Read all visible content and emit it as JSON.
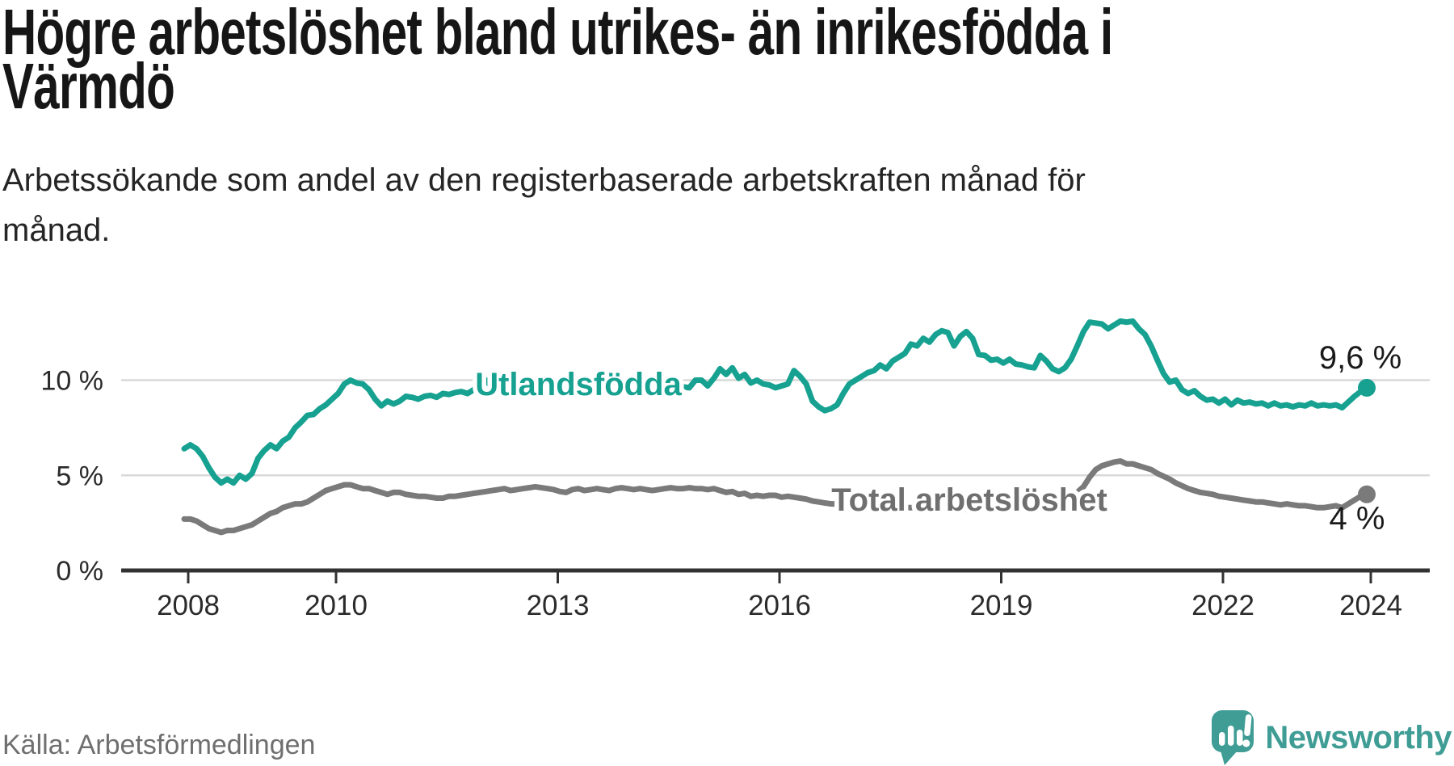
{
  "header": {
    "title_lines": [
      "Högre arbetslöshet bland utrikes- än inrikesfödda i",
      "Värmdö"
    ],
    "subtitle_lines": [
      "Arbetssökande som andel av den registerbaserade arbetskraften månad för",
      "månad."
    ]
  },
  "chart_data": {
    "type": "line",
    "unit": "%",
    "x_start_year": 2008,
    "x_start_month": 1,
    "x_interval": "monthly",
    "x_end_label": "2024",
    "ylim": [
      0,
      13.5
    ],
    "grid": "horizontal",
    "y_ticks": [
      {
        "value": 10,
        "label": "10 %"
      },
      {
        "value": 5,
        "label": "5 %"
      },
      {
        "value": 0,
        "label": "0 %"
      }
    ],
    "x_ticks": [
      {
        "year": 2008,
        "label": "2008"
      },
      {
        "year": 2010,
        "label": "2010"
      },
      {
        "year": 2013,
        "label": "2013"
      },
      {
        "year": 2016,
        "label": "2016"
      },
      {
        "year": 2019,
        "label": "2019"
      },
      {
        "year": 2022,
        "label": "2022"
      },
      {
        "year": 2024,
        "label": "2024"
      }
    ],
    "series": [
      {
        "name": "Utlandsfödda",
        "color": "#16a191",
        "end_label": "9,6 %",
        "end_value": 9.6,
        "values": [
          6.4,
          6.6,
          6.4,
          6.0,
          5.4,
          4.9,
          4.6,
          4.8,
          4.6,
          5.0,
          4.8,
          5.1,
          5.9,
          6.3,
          6.6,
          6.4,
          6.8,
          7.0,
          7.5,
          7.8,
          8.15,
          8.2,
          8.5,
          8.7,
          9.0,
          9.3,
          9.8,
          10.0,
          9.85,
          9.8,
          9.5,
          9.0,
          8.65,
          8.9,
          8.75,
          8.9,
          9.15,
          9.1,
          9.0,
          9.15,
          9.2,
          9.1,
          9.3,
          9.25,
          9.35,
          9.4,
          9.3,
          9.5,
          9.8,
          10.0,
          9.6,
          9.3,
          9.5,
          9.4,
          9.5,
          9.55,
          9.5,
          9.6,
          9.65,
          9.7,
          9.7,
          9.75,
          9.8,
          9.85,
          9.9,
          9.85,
          9.9,
          9.95,
          9.9,
          9.85,
          9.95,
          9.9,
          9.9,
          9.85,
          9.9,
          9.85,
          9.8,
          9.85,
          9.8,
          9.75,
          9.7,
          9.65,
          9.6,
          10.0,
          10.0,
          9.7,
          10.1,
          10.6,
          10.3,
          10.65,
          10.1,
          10.3,
          9.85,
          10.0,
          9.8,
          9.75,
          9.6,
          9.7,
          9.8,
          10.5,
          10.2,
          9.8,
          8.9,
          8.6,
          8.4,
          8.5,
          8.7,
          9.3,
          9.8,
          10.0,
          10.2,
          10.4,
          10.5,
          10.8,
          10.6,
          11.0,
          11.2,
          11.4,
          11.9,
          11.8,
          12.2,
          12.0,
          12.4,
          12.6,
          12.5,
          11.8,
          12.3,
          12.55,
          12.2,
          11.35,
          11.3,
          11.05,
          11.1,
          10.9,
          11.1,
          10.85,
          10.8,
          10.7,
          10.65,
          11.3,
          11.0,
          10.6,
          10.45,
          10.65,
          11.1,
          11.8,
          12.55,
          13.05,
          13.0,
          12.95,
          12.7,
          12.9,
          13.1,
          13.05,
          13.1,
          12.7,
          12.4,
          11.8,
          11.05,
          10.35,
          9.9,
          10.0,
          9.5,
          9.3,
          9.45,
          9.15,
          8.95,
          9.0,
          8.8,
          9.0,
          8.7,
          8.95,
          8.8,
          8.85,
          8.75,
          8.8,
          8.65,
          8.8,
          8.65,
          8.7,
          8.6,
          8.7,
          8.65,
          8.8,
          8.65,
          8.7,
          8.65,
          8.7,
          8.55,
          8.85,
          9.15,
          9.4,
          9.6
        ]
      },
      {
        "name": "Total arbetslöshet",
        "color": "#7a7a7a",
        "end_label": "4 %",
        "end_value": 4.0,
        "values": [
          2.7,
          2.7,
          2.6,
          2.4,
          2.2,
          2.1,
          2.0,
          2.1,
          2.1,
          2.2,
          2.3,
          2.4,
          2.6,
          2.8,
          3.0,
          3.1,
          3.3,
          3.4,
          3.5,
          3.5,
          3.6,
          3.8,
          4.0,
          4.2,
          4.3,
          4.4,
          4.5,
          4.5,
          4.4,
          4.3,
          4.3,
          4.2,
          4.1,
          4.0,
          4.1,
          4.1,
          4.0,
          3.95,
          3.9,
          3.9,
          3.85,
          3.8,
          3.8,
          3.9,
          3.9,
          3.95,
          4.0,
          4.05,
          4.1,
          4.15,
          4.2,
          4.25,
          4.3,
          4.2,
          4.25,
          4.3,
          4.35,
          4.4,
          4.35,
          4.3,
          4.25,
          4.15,
          4.1,
          4.25,
          4.3,
          4.2,
          4.25,
          4.3,
          4.25,
          4.2,
          4.3,
          4.35,
          4.3,
          4.25,
          4.3,
          4.25,
          4.2,
          4.25,
          4.3,
          4.35,
          4.3,
          4.3,
          4.35,
          4.3,
          4.3,
          4.25,
          4.3,
          4.2,
          4.1,
          4.15,
          4.0,
          4.05,
          3.9,
          3.95,
          3.9,
          3.95,
          3.95,
          3.85,
          3.9,
          3.85,
          3.8,
          3.75,
          3.65,
          3.6,
          3.55,
          3.5,
          3.5,
          3.45,
          3.4,
          3.4,
          3.35,
          3.4,
          3.35,
          3.3,
          3.3,
          3.25,
          3.3,
          3.3,
          3.3,
          3.3,
          3.3,
          3.25,
          3.2,
          3.25,
          3.2,
          3.2,
          3.25,
          3.2,
          3.25,
          3.3,
          3.35,
          3.4,
          3.4,
          3.4,
          3.45,
          3.4,
          3.45,
          3.5,
          3.5,
          3.55,
          3.6,
          3.6,
          3.65,
          3.75,
          4.0,
          4.1,
          4.4,
          4.9,
          5.3,
          5.5,
          5.6,
          5.7,
          5.75,
          5.6,
          5.6,
          5.5,
          5.4,
          5.3,
          5.1,
          4.95,
          4.8,
          4.6,
          4.45,
          4.3,
          4.2,
          4.1,
          4.05,
          4.0,
          3.9,
          3.85,
          3.8,
          3.75,
          3.7,
          3.65,
          3.6,
          3.6,
          3.55,
          3.5,
          3.45,
          3.5,
          3.45,
          3.4,
          3.4,
          3.35,
          3.3,
          3.3,
          3.35,
          3.4,
          3.3,
          3.5,
          3.7,
          3.9,
          4.0
        ]
      }
    ]
  },
  "footer": {
    "source": "Källa: Arbetsförmedlingen",
    "brand": "Newsworthy",
    "brand_color": "#3f9d95",
    "brand_icon": "speech-bubble-bar-chart-exclamation"
  },
  "colors": {
    "accent_teal": "#16a191",
    "line_gray": "#7a7a7a",
    "axis": "#323232",
    "gridline": "#d9d9d9"
  }
}
